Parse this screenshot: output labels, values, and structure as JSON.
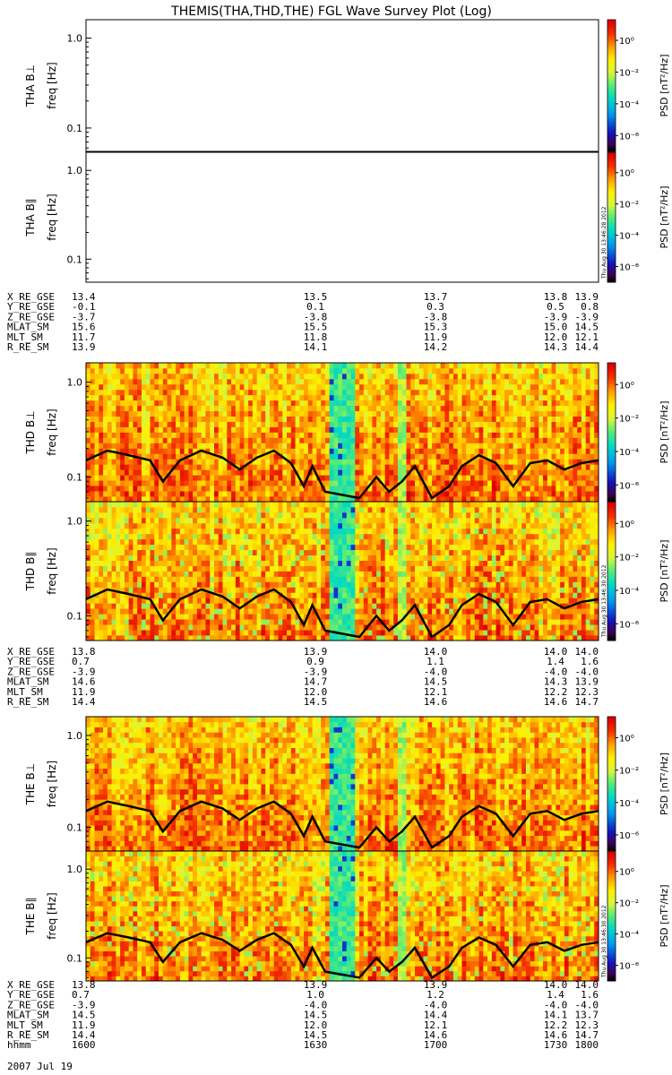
{
  "chart_data": {
    "type": "heatmap",
    "title": "THEMIS(THA,THD,THE) FGL Wave Survey Plot (Log)",
    "date_label": "2007 Jul 19",
    "colorbar": {
      "label": "PSD [nT²/Hz]",
      "ticks": [
        "10⁰",
        "10⁻²",
        "10⁻⁴",
        "10⁻⁶"
      ],
      "tick_exponents": [
        0,
        -2,
        -4,
        -6
      ],
      "range_log10": [
        -7,
        1.3
      ]
    },
    "y_axis": {
      "label": "freq [Hz]",
      "scale": "log",
      "ticks": [
        "1.0",
        "0.1"
      ],
      "tick_values": [
        1.0,
        0.1
      ],
      "range_hz": [
        0.055,
        1.6
      ]
    },
    "time_axis": {
      "range_minutes_after_1600": [
        0,
        120
      ]
    },
    "stamps": [
      "Thu Aug 30 13:46:28 2012",
      "Thu Aug 30 13:46:30 2012",
      "Thu Aug 30 13:46:30 2012"
    ],
    "panels": [
      {
        "probe": "THA",
        "label": "THA B⊥",
        "component": "perp",
        "has_data": false
      },
      {
        "probe": "THA",
        "label": "THA B∥",
        "component": "par",
        "has_data": false
      },
      {
        "probe": "THD",
        "label": "THD B⊥",
        "component": "perp",
        "has_data": true
      },
      {
        "probe": "THD",
        "label": "THD B∥",
        "component": "par",
        "has_data": true
      },
      {
        "probe": "THE",
        "label": "THE B⊥",
        "component": "perp",
        "has_data": true
      },
      {
        "probe": "THE",
        "label": "THE B∥",
        "component": "par",
        "has_data": true
      }
    ],
    "gaps_minutes": [
      [
        57,
        63
      ],
      [
        73,
        75
      ]
    ],
    "black_line_hz": [
      [
        0,
        0.15
      ],
      [
        5,
        0.19
      ],
      [
        10,
        0.17
      ],
      [
        15,
        0.15
      ],
      [
        18,
        0.09
      ],
      [
        22,
        0.15
      ],
      [
        27,
        0.19
      ],
      [
        32,
        0.16
      ],
      [
        36,
        0.12
      ],
      [
        40,
        0.16
      ],
      [
        44,
        0.19
      ],
      [
        48,
        0.14
      ],
      [
        51,
        0.08
      ],
      [
        53,
        0.13
      ],
      [
        56,
        0.07
      ],
      [
        64,
        0.06
      ],
      [
        68,
        0.1
      ],
      [
        71,
        0.07
      ],
      [
        74,
        0.09
      ],
      [
        77,
        0.13
      ],
      [
        81,
        0.06
      ],
      [
        85,
        0.08
      ],
      [
        88,
        0.13
      ],
      [
        92,
        0.17
      ],
      [
        96,
        0.14
      ],
      [
        100,
        0.08
      ],
      [
        104,
        0.14
      ],
      [
        108,
        0.15
      ],
      [
        112,
        0.12
      ],
      [
        116,
        0.14
      ],
      [
        120,
        0.15
      ]
    ],
    "ephemeris": {
      "row_labels": [
        "X_RE_GSE",
        "Y_RE_GSE",
        "Z_RE_GSE",
        "MLAT_SM",
        "MLT_SM",
        "R_RE_SM"
      ],
      "blocks": [
        {
          "rows": [
            [
              "13.4",
              "13.5",
              "13.7",
              "13.8",
              "13.9"
            ],
            [
              "-0.1",
              "0.1",
              "0.3",
              "0.5",
              "0.8"
            ],
            [
              "-3.7",
              "-3.8",
              "-3.8",
              "-3.9",
              "-3.9"
            ],
            [
              "15.6",
              "15.5",
              "15.3",
              "15.0",
              "14.5"
            ],
            [
              "11.7",
              "11.8",
              "11.9",
              "12.0",
              "12.1"
            ],
            [
              "13.9",
              "14.1",
              "14.2",
              "14.3",
              "14.4"
            ]
          ]
        },
        {
          "rows": [
            [
              "13.8",
              "13.9",
              "14.0",
              "14.0",
              "14.0"
            ],
            [
              "0.7",
              "0.9",
              "1.1",
              "1.4",
              "1.6"
            ],
            [
              "-3.9",
              "-3.9",
              "-4.0",
              "-4.0",
              "-4.0"
            ],
            [
              "14.6",
              "14.7",
              "14.5",
              "14.3",
              "13.9"
            ],
            [
              "11.9",
              "12.0",
              "12.1",
              "12.2",
              "12.3"
            ],
            [
              "14.4",
              "14.5",
              "14.6",
              "14.6",
              "14.7"
            ]
          ]
        },
        {
          "rows": [
            [
              "13.8",
              "13.9",
              "13.9",
              "14.0",
              "14.0"
            ],
            [
              "0.7",
              "1.0",
              "1.2",
              "1.4",
              "1.6"
            ],
            [
              "-3.9",
              "-4.0",
              "-4.0",
              "-4.0",
              "-4.0"
            ],
            [
              "14.5",
              "14.5",
              "14.4",
              "14.1",
              "13.7"
            ],
            [
              "11.9",
              "12.0",
              "12.1",
              "12.2",
              "12.3"
            ],
            [
              "14.4",
              "14.5",
              "14.6",
              "14.6",
              "14.7"
            ],
            [
              "1600",
              "1630",
              "1700",
              "1730",
              "1800"
            ]
          ]
        }
      ],
      "time_row_label": "hhmm"
    }
  }
}
